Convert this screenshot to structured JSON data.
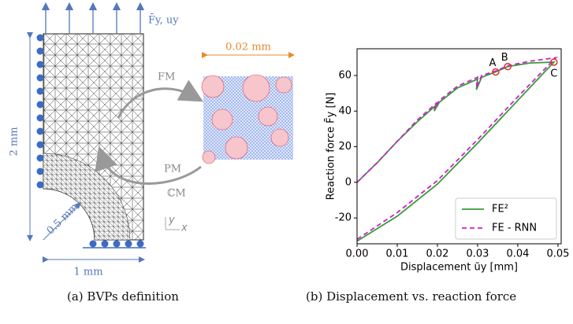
{
  "figure_a": {
    "caption": "(a) BVPs definition",
    "labels": {
      "load": "F̄y, uy",
      "f_m": "FM",
      "p_m": "PM",
      "c_m": "ℂM",
      "rve_size": "0.02 mm",
      "height": "2 mm",
      "radius": "0.5 mm",
      "width": "1 mm",
      "axis_y": "y",
      "axis_x": "x"
    }
  },
  "figure_b": {
    "caption": "(b) Displacement vs. reaction force"
  },
  "chart_data": {
    "type": "line",
    "xlabel": "Displacement ũy [mm]",
    "ylabel": "Reaction force F̄y [N]",
    "xlim": [
      0,
      0.0508
    ],
    "ylim": [
      -34.5,
      75
    ],
    "xticks": [
      {
        "value": 0,
        "label": "0.00"
      },
      {
        "value": 0.01,
        "label": "0.01"
      },
      {
        "value": 0.02,
        "label": "0.02"
      },
      {
        "value": 0.03,
        "label": "0.03"
      },
      {
        "value": 0.04,
        "label": "0.04"
      },
      {
        "value": 0.05,
        "label": "0.05"
      }
    ],
    "yticks": [
      -20,
      0,
      20,
      40,
      60
    ],
    "legend": "lower right",
    "series": [
      {
        "name": "FE²",
        "color": "#3a9a3a",
        "linestyle": "solid",
        "x": [
          0,
          0.005,
          0.01,
          0.015,
          0.02,
          0.0192,
          0.0205,
          0.025,
          0.03,
          0.0297,
          0.031,
          0.0345,
          0.0375,
          0.043,
          0.049,
          0.045,
          0.04,
          0.03,
          0.02,
          0.01,
          0
        ],
        "values": [
          0,
          11,
          23,
          34,
          44,
          40,
          45,
          53,
          58,
          52,
          59,
          62,
          65,
          67,
          67.5,
          58,
          46,
          22,
          -1,
          -19,
          -33
        ]
      },
      {
        "name": "FE - RNN",
        "color": "#cc22cc",
        "linestyle": "dashed",
        "x": [
          0,
          0.005,
          0.01,
          0.015,
          0.02,
          0.0192,
          0.0205,
          0.025,
          0.03,
          0.0297,
          0.031,
          0.0345,
          0.0375,
          0.043,
          0.0495,
          0.046,
          0.04,
          0.03,
          0.02,
          0.01,
          0
        ],
        "values": [
          0,
          11,
          23,
          35,
          45,
          41,
          46,
          54,
          59,
          53,
          60,
          62.5,
          65.5,
          68,
          70,
          62,
          48,
          24,
          1,
          -17,
          -32
        ]
      }
    ],
    "marker_color": "#e03030",
    "annotations": [
      {
        "text": "A",
        "x": 0.0345,
        "y": 62
      },
      {
        "text": "B",
        "x": 0.0375,
        "y": 65
      },
      {
        "text": "C",
        "x": 0.049,
        "y": 67.5
      }
    ]
  }
}
